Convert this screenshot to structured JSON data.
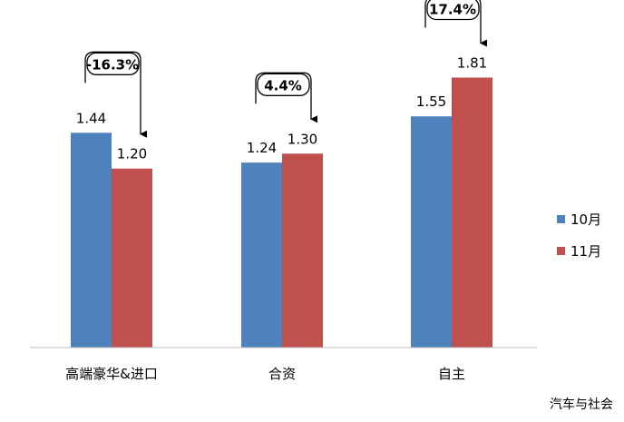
{
  "chart_data": {
    "type": "bar",
    "categories": [
      "高端豪华&进口",
      "合资",
      "自主"
    ],
    "series": [
      {
        "name": "10月",
        "values": [
          1.44,
          1.24,
          1.55
        ],
        "color": "#4F81BD"
      },
      {
        "name": "11月",
        "values": [
          1.2,
          1.3,
          1.81
        ],
        "color": "#C0504D"
      }
    ],
    "data_labels": [
      [
        "1.44",
        "1.20"
      ],
      [
        "1.24",
        "1.30"
      ],
      [
        "1.55",
        "1.81"
      ]
    ],
    "change_annotations": [
      "-16.3%",
      "4.4%",
      "17.4%"
    ],
    "ylim": [
      0,
      2.33
    ],
    "grid": false,
    "legend_position": "right"
  },
  "watermark": "汽车与社会"
}
